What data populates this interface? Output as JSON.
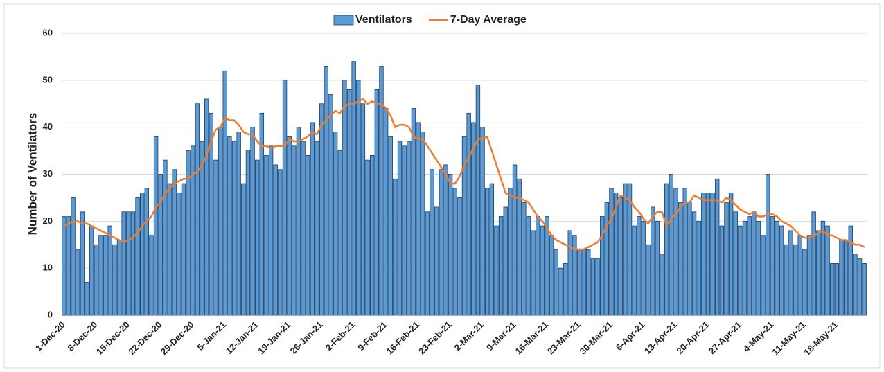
{
  "chart_data": {
    "type": "bar",
    "y_label": "Number of Ventilators",
    "categories": [
      "1-Dec-20",
      null,
      null,
      null,
      null,
      null,
      null,
      "8-Dec-20",
      null,
      null,
      null,
      null,
      null,
      null,
      "15-Dec-20",
      null,
      null,
      null,
      null,
      null,
      null,
      "22-Dec-20",
      null,
      null,
      null,
      null,
      null,
      null,
      "29-Dec-20",
      null,
      null,
      null,
      null,
      null,
      null,
      "5-Jan-21",
      null,
      null,
      null,
      null,
      null,
      null,
      "12-Jan-21",
      null,
      null,
      null,
      null,
      null,
      null,
      "19-Jan-21",
      null,
      null,
      null,
      null,
      null,
      null,
      "26-Jan-21",
      null,
      null,
      null,
      null,
      null,
      null,
      "2-Feb-21",
      null,
      null,
      null,
      null,
      null,
      null,
      "9-Feb-21",
      null,
      null,
      null,
      null,
      null,
      null,
      "16-Feb-21",
      null,
      null,
      null,
      null,
      null,
      null,
      "23-Feb-21",
      null,
      null,
      null,
      null,
      null,
      null,
      "2-Mar-21",
      null,
      null,
      null,
      null,
      null,
      null,
      "9-Mar-21",
      null,
      null,
      null,
      null,
      null,
      null,
      "16-Mar-21",
      null,
      null,
      null,
      null,
      null,
      null,
      "23-Mar-21",
      null,
      null,
      null,
      null,
      null,
      null,
      "30-Mar-21",
      null,
      null,
      null,
      null,
      null,
      null,
      "6-Apr-21",
      null,
      null,
      null,
      null,
      null,
      null,
      "13-Apr-21",
      null,
      null,
      null,
      null,
      null,
      null,
      "20-Apr-21",
      null,
      null,
      null,
      null,
      null,
      null,
      "27-Apr-21",
      null,
      null,
      null,
      null,
      null,
      null,
      "4-May-21",
      null,
      null,
      null,
      null,
      null,
      null,
      "11-May-21",
      null,
      null,
      null,
      null,
      null,
      null,
      "18-May-21",
      null,
      null,
      null,
      null,
      null,
      null
    ],
    "series": [
      {
        "name": "Ventilators",
        "type": "bar",
        "color": "#5b9bd5",
        "values": [
          21,
          21,
          25,
          14,
          22,
          7,
          19,
          15,
          17,
          17,
          19,
          15,
          16,
          22,
          22,
          22,
          25,
          26,
          27,
          17,
          38,
          30,
          33,
          28,
          31,
          26,
          28,
          35,
          36,
          45,
          37,
          46,
          43,
          33,
          40,
          52,
          38,
          37,
          39,
          28,
          35,
          40,
          33,
          43,
          34,
          36,
          32,
          31,
          50,
          38,
          36,
          40,
          37,
          34,
          41,
          37,
          45,
          53,
          47,
          39,
          35,
          50,
          48,
          54,
          50,
          45,
          33,
          34,
          48,
          53,
          44,
          38,
          29,
          37,
          36,
          37,
          44,
          41,
          39,
          22,
          31,
          23,
          31,
          32,
          30,
          27,
          25,
          38,
          43,
          41,
          49,
          40,
          27,
          28,
          19,
          21,
          23,
          27,
          32,
          29,
          24,
          21,
          18,
          21,
          19,
          21,
          17,
          14,
          10,
          11,
          18,
          17,
          14,
          14,
          14,
          12,
          12,
          21,
          24,
          27,
          26,
          25,
          28,
          28,
          19,
          21,
          20,
          15,
          23,
          20,
          13,
          28,
          30,
          27,
          24,
          27,
          24,
          22,
          20,
          26,
          26,
          26,
          29,
          19,
          24,
          26,
          22,
          19,
          20,
          21,
          22,
          20,
          17,
          30,
          21,
          20,
          19,
          15,
          18,
          15,
          17,
          14,
          17,
          22,
          18,
          20,
          19,
          11,
          11,
          16,
          16,
          19,
          13,
          12,
          11
        ]
      },
      {
        "name": "7-Day Average",
        "type": "line",
        "color": "#ed7d31",
        "values": [
          19,
          19.5,
          20,
          20,
          19.5,
          19.5,
          19,
          18.5,
          18,
          17.5,
          17,
          16.5,
          16,
          15.5,
          16,
          16.5,
          17.5,
          19,
          20,
          21,
          23,
          24,
          26,
          27,
          28,
          28.5,
          29,
          29,
          30,
          30.5,
          32,
          34,
          37,
          39.5,
          40,
          42,
          41.5,
          41.5,
          40.5,
          39,
          38.5,
          38.5,
          37,
          36,
          36,
          35.5,
          36,
          36,
          36,
          37.5,
          37,
          37,
          37.5,
          38,
          39,
          38.5,
          40.5,
          41.5,
          42.5,
          43.5,
          43,
          44.5,
          45,
          45,
          45.5,
          46,
          45,
          45.5,
          45,
          45,
          44,
          42.5,
          40,
          40.5,
          40.5,
          40,
          38,
          37.5,
          37.5,
          36,
          34.5,
          33,
          31.5,
          30,
          28,
          28,
          29.5,
          32,
          33.5,
          35.5,
          37.5,
          37.5,
          38,
          35,
          32,
          29,
          26,
          25.5,
          25,
          25,
          24.5,
          24,
          22.5,
          21,
          20,
          18.5,
          17,
          16,
          15.5,
          15,
          14.5,
          14,
          14,
          14,
          14.5,
          15,
          15.5,
          17,
          19,
          20.5,
          23,
          25.5,
          25,
          24.5,
          23,
          22,
          20.5,
          19.5,
          21,
          22,
          22,
          19,
          20.5,
          21.5,
          23,
          24,
          24,
          25.5,
          25,
          24.5,
          24.5,
          24.5,
          24.5,
          24,
          25,
          24.5,
          23.5,
          22.5,
          22,
          21.5,
          22,
          21,
          21,
          21.5,
          21.5,
          21,
          20,
          19.5,
          19,
          18,
          17,
          16.5,
          16.5,
          17,
          17.5,
          18,
          17,
          17,
          16.5,
          16,
          16,
          15.5,
          15,
          15,
          14.5
        ]
      }
    ],
    "ylim": [
      0,
      60
    ],
    "yticks": [
      0,
      10,
      20,
      30,
      40,
      50,
      60
    ],
    "grid": true,
    "legend": "top"
  }
}
